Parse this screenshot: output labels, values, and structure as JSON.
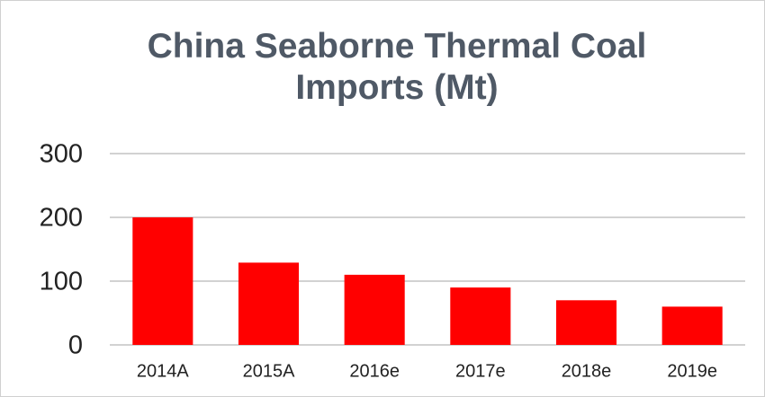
{
  "chart_data": {
    "type": "bar",
    "title": "China Seaborne Thermal Coal Imports (Mt)",
    "categories": [
      "2014A",
      "2015A",
      "2016e",
      "2017e",
      "2018e",
      "2019e"
    ],
    "values": [
      200,
      129,
      110,
      90,
      70,
      60
    ],
    "color": "#ff0000",
    "ylim": [
      0,
      300
    ],
    "yticks": [
      0,
      100,
      200,
      300
    ],
    "grid": true
  }
}
